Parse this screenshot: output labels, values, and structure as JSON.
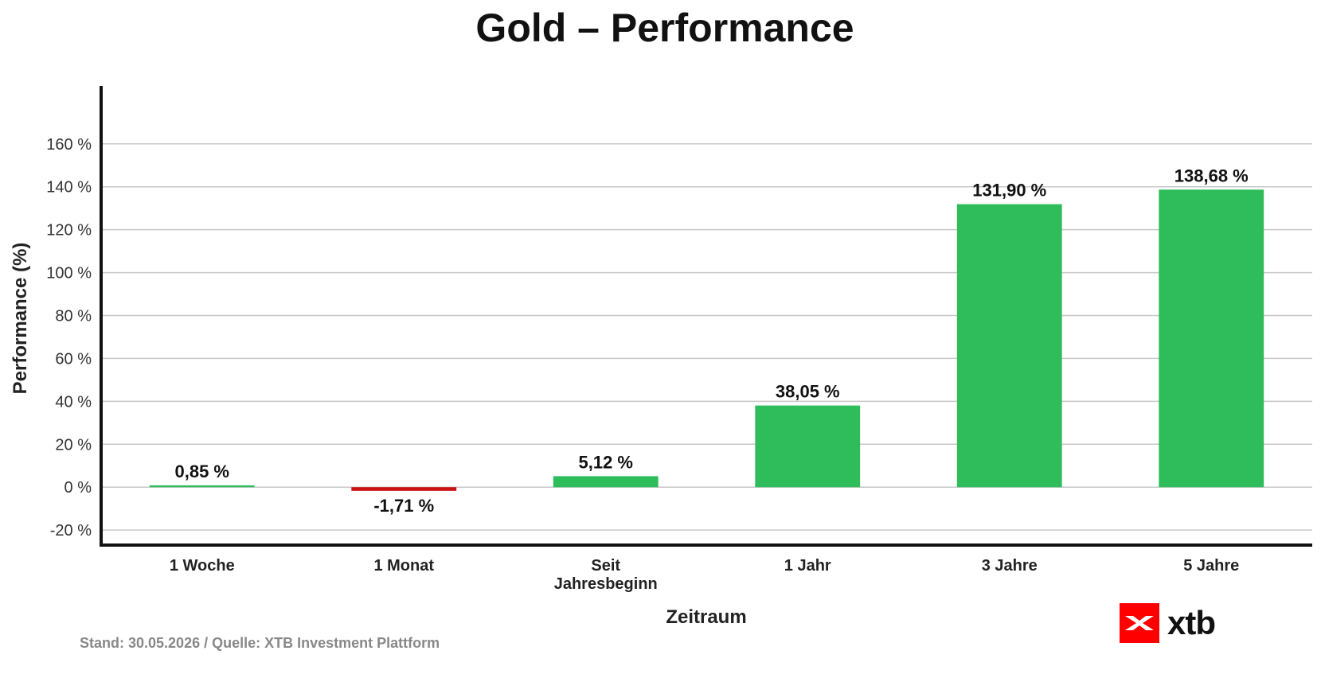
{
  "chart_data": {
    "type": "bar",
    "title": "Gold – Performance",
    "xlabel": "Zeitraum",
    "ylabel": "Performance (%)",
    "categories": [
      [
        "1 Woche"
      ],
      [
        "1 Monat"
      ],
      [
        "Seit",
        "Jahresbeginn"
      ],
      [
        "1 Jahr"
      ],
      [
        "3 Jahre"
      ],
      [
        "5 Jahre"
      ]
    ],
    "values": [
      0.85,
      -1.71,
      5.12,
      38.05,
      131.9,
      138.68
    ],
    "value_labels": [
      "0,85 %",
      "-1,71 %",
      "5,12 %",
      "38,05 %",
      "131,90 %",
      "138,68 %"
    ],
    "ylim": [
      -27,
      187
    ],
    "yticks": [
      -20,
      0,
      20,
      40,
      60,
      80,
      100,
      120,
      140,
      160
    ],
    "ytick_labels": [
      "-20 %",
      "0 %",
      "20 %",
      "40 %",
      "60 %",
      "80 %",
      "100 %",
      "120 %",
      "140 %",
      "160 %"
    ],
    "grid": true,
    "colors": {
      "positive": "#2ebd5a",
      "negative": "#cc1111",
      "grid": "#c8c8c8",
      "axis": "#111111"
    }
  },
  "footer": {
    "source": "Stand: 30.05.2026 / Quelle: XTB Investment Plattform"
  },
  "logo": {
    "text": "xtb",
    "color": "#ff0000"
  }
}
